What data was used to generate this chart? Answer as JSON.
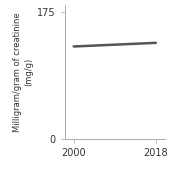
{
  "x": [
    2000,
    2018
  ],
  "y": [
    128,
    133
  ],
  "line_color": "#555555",
  "line_width": 1.8,
  "xlim": [
    1998,
    2020
  ],
  "ylim": [
    0,
    185
  ],
  "xticks": [
    2000,
    2018
  ],
  "yticks": [
    0,
    175
  ],
  "ylabel": "Milligram/gram of creatinine\n(mg/g)",
  "ylabel_fontsize": 6.0,
  "tick_fontsize": 7,
  "background_color": "#ffffff",
  "spine_color": "#aaaaaa"
}
